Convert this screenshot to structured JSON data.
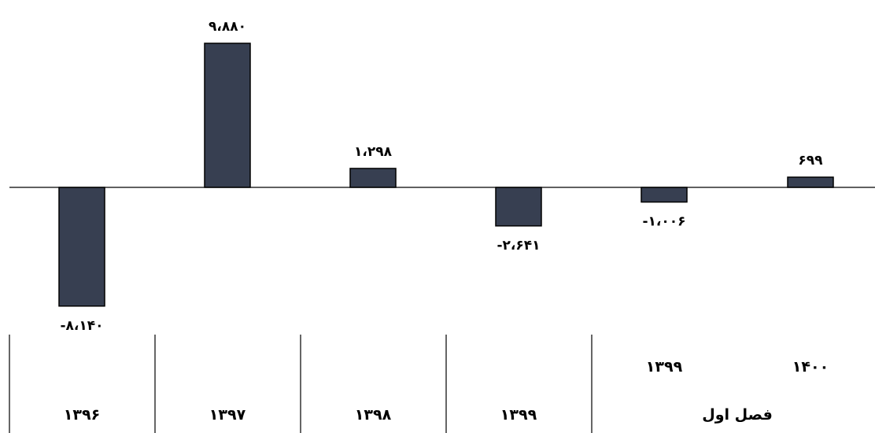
{
  "chart_data": {
    "type": "bar",
    "categories": [
      "۱۳۹۶",
      "۱۳۹۷",
      "۱۳۹۸",
      "۱۳۹۹",
      "۱۳۹۹",
      "۱۴۰۰"
    ],
    "values": [
      -8140,
      9880,
      1298,
      -2641,
      -1006,
      699
    ],
    "data_labels": [
      "-۸،۱۴۰",
      "۹،۸۸۰",
      "۱،۲۹۸",
      "-۲،۶۴۱",
      "-۱،۰۰۶",
      "۶۹۹"
    ],
    "group_label": "فصل اول",
    "grid": false,
    "legend": "none",
    "colors": {
      "bar": "#373F51",
      "bar_stroke": "#000000",
      "axis": "#000000"
    },
    "title": "",
    "xlabel": "",
    "ylabel": ""
  }
}
